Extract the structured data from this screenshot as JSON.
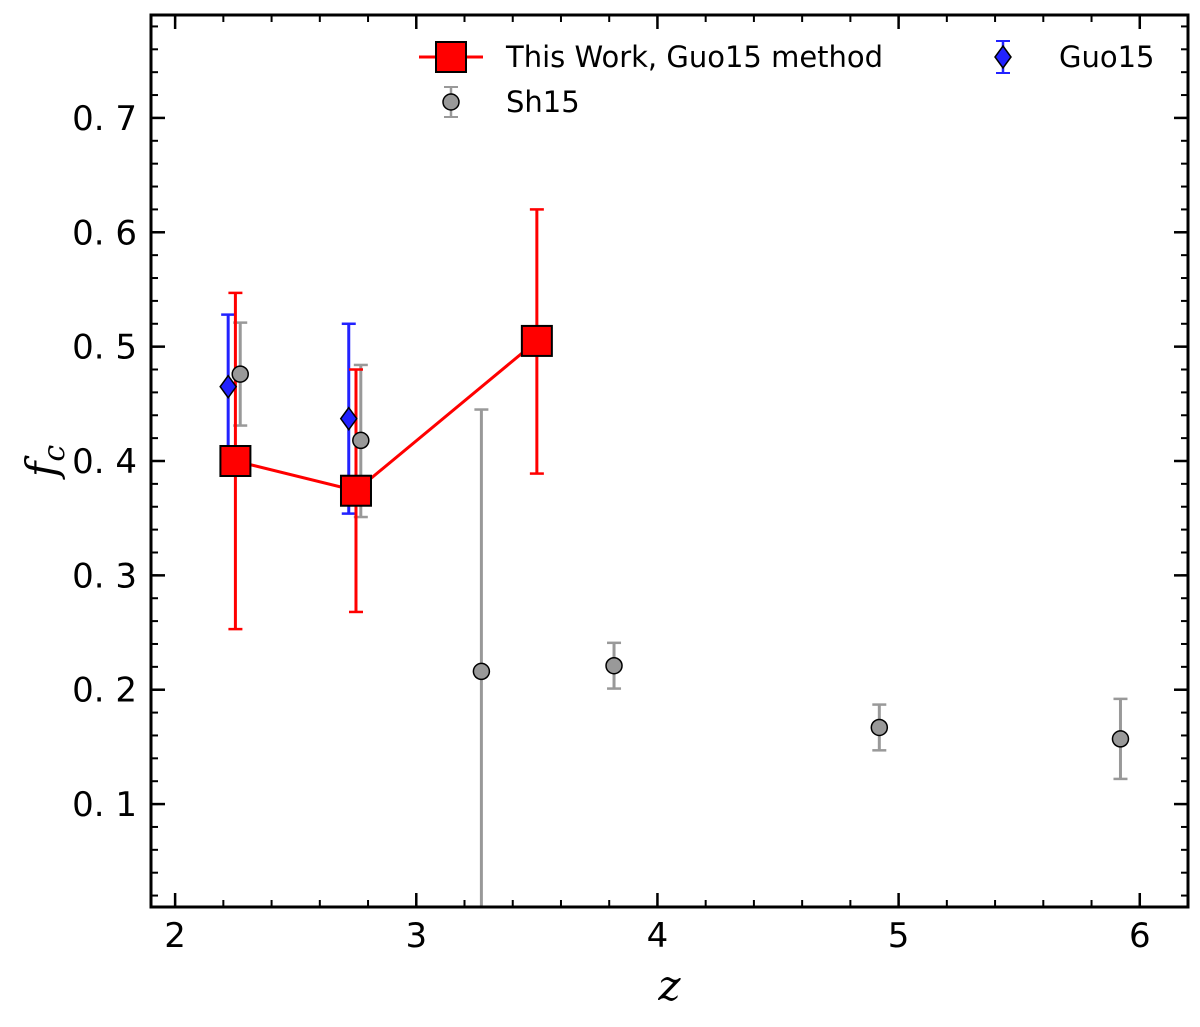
{
  "chart_data": {
    "type": "scatter",
    "xlabel": "z",
    "ylabel": "f",
    "ylabel_subscript": "c",
    "xlim": [
      1.9,
      6.2
    ],
    "ylim": [
      0.01,
      0.79
    ],
    "x_ticks": [
      2,
      3,
      4,
      5,
      6
    ],
    "x_tick_labels": [
      "2",
      "3",
      "4",
      "5",
      "6"
    ],
    "x_minor_step": 0.2,
    "y_ticks": [
      0.1,
      0.2,
      0.3,
      0.4,
      0.5,
      0.6,
      0.7
    ],
    "y_tick_labels": [
      "0. 1",
      "0. 2",
      "0. 3",
      "0. 4",
      "0. 5",
      "0. 6",
      "0. 7"
    ],
    "y_minor_step": 0.02,
    "grid": false,
    "legend_placement": "top-center",
    "series": [
      {
        "name": "This Work, Guo15 method",
        "color": "#ff0000",
        "edge_color": "#000000",
        "marker": "square",
        "line": true,
        "points": [
          {
            "x": 2.25,
            "y": 0.4,
            "ylo": 0.253,
            "yhi": 0.547
          },
          {
            "x": 2.75,
            "y": 0.374,
            "ylo": 0.268,
            "yhi": 0.48
          },
          {
            "x": 3.5,
            "y": 0.505,
            "ylo": 0.389,
            "yhi": 0.62
          }
        ]
      },
      {
        "name": "Guo15",
        "color": "#2222ff",
        "edge_color": "#000000",
        "marker": "diamond",
        "line": false,
        "points": [
          {
            "x": 2.22,
            "y": 0.465,
            "ylo": 0.4,
            "yhi": 0.528
          },
          {
            "x": 2.72,
            "y": 0.437,
            "ylo": 0.354,
            "yhi": 0.52
          }
        ]
      },
      {
        "name": "Sh15",
        "color": "#999999",
        "edge_color": "#000000",
        "marker": "circle",
        "line": false,
        "points": [
          {
            "x": 2.27,
            "y": 0.476,
            "ylo": 0.431,
            "yhi": 0.521
          },
          {
            "x": 2.77,
            "y": 0.418,
            "ylo": 0.351,
            "yhi": 0.484
          },
          {
            "x": 3.27,
            "y": 0.216,
            "ylo": 0.0,
            "yhi": 0.445
          },
          {
            "x": 3.82,
            "y": 0.221,
            "ylo": 0.201,
            "yhi": 0.241
          },
          {
            "x": 4.92,
            "y": 0.167,
            "ylo": 0.147,
            "yhi": 0.187
          },
          {
            "x": 5.92,
            "y": 0.157,
            "ylo": 0.122,
            "yhi": 0.192
          }
        ]
      }
    ]
  }
}
